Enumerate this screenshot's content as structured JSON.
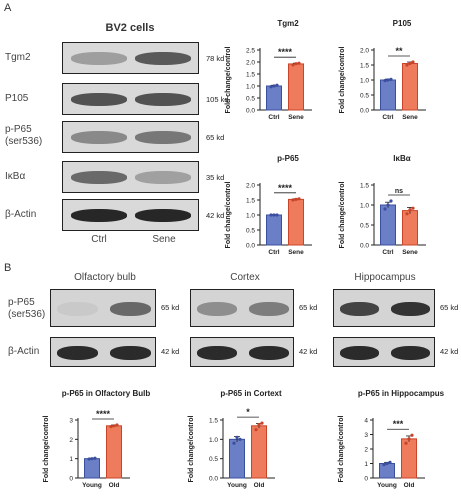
{
  "panel_a": {
    "letter": "A",
    "cell_title": "BV2 cells",
    "rows": [
      {
        "label": "Tgm2",
        "kd": "78 kd"
      },
      {
        "label": "P105",
        "kd": "105 kd"
      },
      {
        "label": "p-P65\n(ser536)",
        "kd": "65 kd"
      },
      {
        "label": "IκBα",
        "kd": "35 kd"
      },
      {
        "label": "β-Actin",
        "kd": "42 kd"
      }
    ],
    "lanes": [
      "Ctrl",
      "Sene"
    ]
  },
  "panel_b": {
    "letter": "B",
    "tissues": [
      "Olfactory bulb",
      "Cortex",
      "Hippocampus"
    ],
    "row_labels": [
      "p-P65\n(ser536)",
      "β-Actin"
    ],
    "kd": [
      "65 kd",
      "42 kd"
    ]
  },
  "colors": {
    "ctrl": "#6b7fc6",
    "treat": "#ee7b5b",
    "ctrl_edge": "#3b4fa0",
    "treat_edge": "#c9452a"
  },
  "chart_data": [
    {
      "type": "bar",
      "title": "Tgm2",
      "categories": [
        "Ctrl",
        "Sene"
      ],
      "values": [
        1.0,
        1.92
      ],
      "errors": [
        0.03,
        0.03
      ],
      "points": [
        [
          0.97,
          1.0,
          1.03
        ],
        [
          1.88,
          1.93,
          1.95
        ]
      ],
      "ylabel": "Fold change/control",
      "ylim": [
        0,
        2.5
      ],
      "yticks": [
        0.0,
        0.5,
        1.0,
        1.5,
        2.0,
        2.5
      ],
      "sig": "****"
    },
    {
      "type": "bar",
      "title": "P105",
      "categories": [
        "Ctrl",
        "Sene"
      ],
      "values": [
        1.0,
        1.55
      ],
      "errors": [
        0.03,
        0.05
      ],
      "points": [
        [
          0.98,
          1.0,
          1.02
        ],
        [
          1.5,
          1.55,
          1.6
        ]
      ],
      "ylabel": "Fold change/control",
      "ylim": [
        0,
        2.0
      ],
      "yticks": [
        0.0,
        0.5,
        1.0,
        1.5,
        2.0
      ],
      "sig": "**"
    },
    {
      "type": "bar",
      "title": "p-P65",
      "categories": [
        "Ctrl",
        "Sene"
      ],
      "values": [
        1.0,
        1.52
      ],
      "errors": [
        0.01,
        0.02
      ],
      "points": [
        [
          1.0,
          1.0,
          1.0
        ],
        [
          1.5,
          1.52,
          1.54
        ]
      ],
      "ylabel": "Fold change/control",
      "ylim": [
        0,
        2.0
      ],
      "yticks": [
        0.0,
        0.5,
        1.0,
        1.5,
        2.0
      ],
      "sig": "****"
    },
    {
      "type": "bar",
      "title": "IκBα",
      "categories": [
        "Ctrl",
        "Sene"
      ],
      "values": [
        1.0,
        0.86
      ],
      "errors": [
        0.07,
        0.08
      ],
      "points": [
        [
          0.9,
          1.0,
          1.1
        ],
        [
          0.78,
          0.88,
          0.92
        ]
      ],
      "ylabel": "Fold change/control",
      "ylim": [
        0,
        1.5
      ],
      "yticks": [
        0.0,
        0.5,
        1.0,
        1.5
      ],
      "sig": "ns"
    },
    {
      "type": "bar",
      "title": "p-P65 in Olfactory Bulb",
      "categories": [
        "Young",
        "Old"
      ],
      "values": [
        1.0,
        2.7
      ],
      "errors": [
        0.03,
        0.04
      ],
      "points": [
        [
          0.98,
          1.0,
          1.02
        ],
        [
          2.66,
          2.7,
          2.74
        ]
      ],
      "ylabel": "Fold change/control",
      "ylim": [
        0,
        3
      ],
      "yticks": [
        0,
        1,
        2,
        3
      ],
      "sig": "****"
    },
    {
      "type": "bar",
      "title": "p-P65 in Cortext",
      "categories": [
        "Young",
        "Old"
      ],
      "values": [
        1.0,
        1.35
      ],
      "errors": [
        0.07,
        0.06
      ],
      "points": [
        [
          0.9,
          1.05,
          1.0
        ],
        [
          1.25,
          1.38,
          1.42
        ]
      ],
      "ylabel": "Fold change/control",
      "ylim": [
        0,
        1.5
      ],
      "yticks": [
        0.0,
        0.5,
        1.0,
        1.5
      ],
      "sig": "*"
    },
    {
      "type": "bar",
      "title": "p-P65 in Hippocampus",
      "categories": [
        "Young",
        "Old"
      ],
      "values": [
        1.0,
        2.7
      ],
      "errors": [
        0.08,
        0.2
      ],
      "points": [
        [
          0.92,
          1.0,
          1.08
        ],
        [
          2.4,
          2.7,
          2.95
        ]
      ],
      "ylabel": "Fold change/control",
      "ylim": [
        0,
        4
      ],
      "yticks": [
        0,
        1,
        2,
        3,
        4
      ],
      "sig": "***"
    }
  ]
}
